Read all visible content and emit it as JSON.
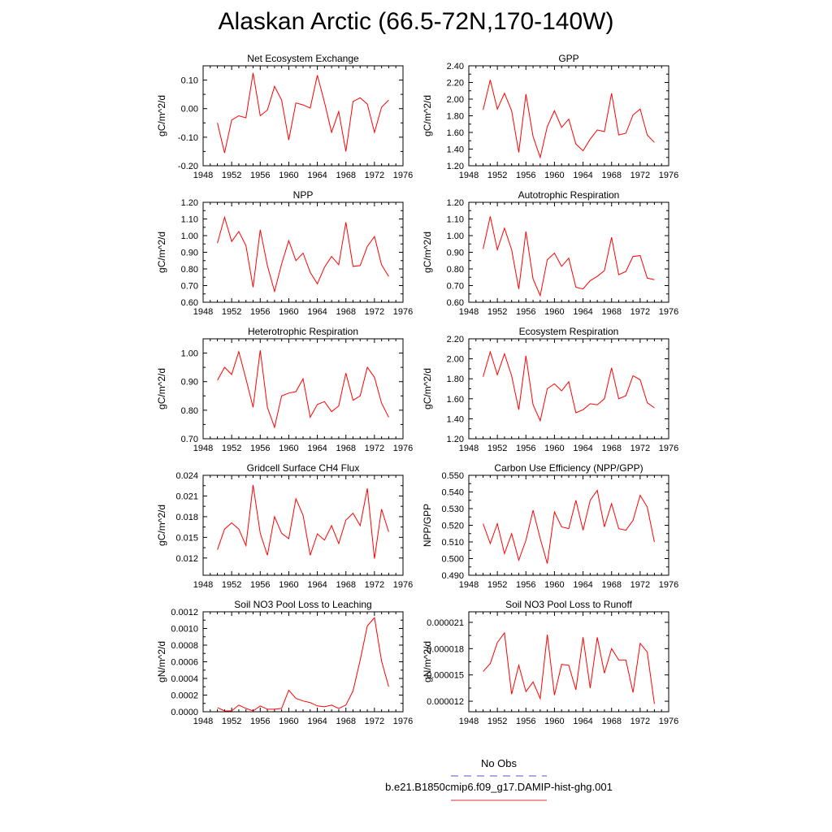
{
  "title": "Alaskan Arctic (66.5-72N,170-140W)",
  "legend": {
    "entries": [
      {
        "label": "No Obs",
        "color": "#5555cc",
        "style": "dashed"
      },
      {
        "label": "b.e21.B1850cmip6.f09_g17.DAMIP-hist-ghg.001",
        "color": "#e03030",
        "style": "solid"
      }
    ]
  },
  "series_color": "#ff0000",
  "chart_data": [
    {
      "type": "line",
      "title": "Net Ecosystem Exchange",
      "ylabel": "gC/m^2/d",
      "xlim": [
        1948,
        1976
      ],
      "ylim": [
        -0.2,
        0.15
      ],
      "xticks": [
        1948,
        1952,
        1956,
        1960,
        1964,
        1968,
        1972,
        1976
      ],
      "xticklabels": [
        "1948",
        "1952",
        "1956",
        "1960",
        "1964",
        "1968",
        "1972",
        "1976"
      ],
      "yticks": [
        -0.2,
        -0.1,
        0.0,
        0.1
      ],
      "yticklabels": [
        "-0.20",
        "-0.10",
        "0.00",
        "0.10"
      ],
      "x": [
        1950,
        1951,
        1952,
        1953,
        1954,
        1955,
        1956,
        1957,
        1958,
        1959,
        1960,
        1961,
        1962,
        1963,
        1964,
        1965,
        1966,
        1967,
        1968,
        1969,
        1970,
        1971,
        1972,
        1973,
        1974
      ],
      "series": [
        {
          "values": [
            -0.05,
            -0.155,
            -0.04,
            -0.025,
            -0.032,
            0.125,
            -0.025,
            -0.005,
            0.078,
            0.03,
            -0.11,
            0.02,
            0.013,
            0.002,
            0.117,
            0.022,
            -0.083,
            -0.01,
            -0.15,
            0.025,
            0.038,
            0.016,
            -0.083,
            0.005,
            0.03
          ]
        }
      ]
    },
    {
      "type": "line",
      "title": "GPP",
      "ylabel": "gC/m^2/d",
      "xlim": [
        1948,
        1976
      ],
      "ylim": [
        1.2,
        2.4
      ],
      "xticks": [
        1948,
        1952,
        1956,
        1960,
        1964,
        1968,
        1972,
        1976
      ],
      "xticklabels": [
        "1948",
        "1952",
        "1956",
        "1960",
        "1964",
        "1968",
        "1972",
        "1976"
      ],
      "yticks": [
        1.2,
        1.4,
        1.6,
        1.8,
        2.0,
        2.2,
        2.4
      ],
      "yticklabels": [
        "1.20",
        "1.40",
        "1.60",
        "1.80",
        "2.00",
        "2.20",
        "2.40"
      ],
      "x": [
        1950,
        1951,
        1952,
        1953,
        1954,
        1955,
        1956,
        1957,
        1958,
        1959,
        1960,
        1961,
        1962,
        1963,
        1964,
        1965,
        1966,
        1967,
        1968,
        1969,
        1970,
        1971,
        1972,
        1973,
        1974
      ],
      "series": [
        {
          "values": [
            1.87,
            2.23,
            1.88,
            2.07,
            1.86,
            1.36,
            2.06,
            1.55,
            1.3,
            1.67,
            1.86,
            1.66,
            1.76,
            1.46,
            1.38,
            1.52,
            1.63,
            1.61,
            2.07,
            1.57,
            1.59,
            1.81,
            1.88,
            1.57,
            1.48
          ]
        }
      ]
    },
    {
      "type": "line",
      "title": "NPP",
      "ylabel": "gC/m^2/d",
      "xlim": [
        1948,
        1976
      ],
      "ylim": [
        0.6,
        1.2
      ],
      "xticks": [
        1948,
        1952,
        1956,
        1960,
        1964,
        1968,
        1972,
        1976
      ],
      "xticklabels": [
        "1948",
        "1952",
        "1956",
        "1960",
        "1964",
        "1968",
        "1972",
        "1976"
      ],
      "yticks": [
        0.6,
        0.7,
        0.8,
        0.9,
        1.0,
        1.1,
        1.2
      ],
      "yticklabels": [
        "0.60",
        "0.70",
        "0.80",
        "0.90",
        "1.00",
        "1.10",
        "1.20"
      ],
      "x": [
        1950,
        1951,
        1952,
        1953,
        1954,
        1955,
        1956,
        1957,
        1958,
        1959,
        1960,
        1961,
        1962,
        1963,
        1964,
        1965,
        1966,
        1967,
        1968,
        1969,
        1970,
        1971,
        1972,
        1973,
        1974
      ],
      "series": [
        {
          "values": [
            0.955,
            1.11,
            0.965,
            1.025,
            0.94,
            0.69,
            1.035,
            0.82,
            0.665,
            0.83,
            0.97,
            0.85,
            0.895,
            0.78,
            0.71,
            0.81,
            0.875,
            0.825,
            1.08,
            0.815,
            0.82,
            0.935,
            0.995,
            0.825,
            0.755
          ]
        }
      ]
    },
    {
      "type": "line",
      "title": "Autotrophic Respiration",
      "ylabel": "gC/m^2/d",
      "xlim": [
        1948,
        1976
      ],
      "ylim": [
        0.6,
        1.2
      ],
      "xticks": [
        1948,
        1952,
        1956,
        1960,
        1964,
        1968,
        1972,
        1976
      ],
      "xticklabels": [
        "1948",
        "1952",
        "1956",
        "1960",
        "1964",
        "1968",
        "1972",
        "1976"
      ],
      "yticks": [
        0.6,
        0.7,
        0.8,
        0.9,
        1.0,
        1.1,
        1.2
      ],
      "yticklabels": [
        "0.60",
        "0.70",
        "0.80",
        "0.90",
        "1.00",
        "1.10",
        "1.20"
      ],
      "x": [
        1950,
        1951,
        1952,
        1953,
        1954,
        1955,
        1956,
        1957,
        1958,
        1959,
        1960,
        1961,
        1962,
        1963,
        1964,
        1965,
        1966,
        1967,
        1968,
        1969,
        1970,
        1971,
        1972,
        1973,
        1974
      ],
      "series": [
        {
          "values": [
            0.92,
            1.115,
            0.915,
            1.045,
            0.915,
            0.68,
            1.025,
            0.74,
            0.64,
            0.855,
            0.895,
            0.815,
            0.865,
            0.69,
            0.68,
            0.73,
            0.755,
            0.79,
            0.99,
            0.765,
            0.785,
            0.875,
            0.88,
            0.745,
            0.735
          ]
        }
      ]
    },
    {
      "type": "line",
      "title": "Heterotrophic Respiration",
      "ylabel": "gC/m^2/d",
      "xlim": [
        1948,
        1976
      ],
      "ylim": [
        0.7,
        1.05
      ],
      "xticks": [
        1948,
        1952,
        1956,
        1960,
        1964,
        1968,
        1972,
        1976
      ],
      "xticklabels": [
        "1948",
        "1952",
        "1956",
        "1960",
        "1964",
        "1968",
        "1972",
        "1976"
      ],
      "yticks": [
        0.7,
        0.8,
        0.9,
        1.0
      ],
      "yticklabels": [
        "0.70",
        "0.80",
        "0.90",
        "1.00"
      ],
      "x": [
        1950,
        1951,
        1952,
        1953,
        1954,
        1955,
        1956,
        1957,
        1958,
        1959,
        1960,
        1961,
        1962,
        1963,
        1964,
        1965,
        1966,
        1967,
        1968,
        1969,
        1970,
        1971,
        1972,
        1973,
        1974
      ],
      "series": [
        {
          "values": [
            0.905,
            0.95,
            0.925,
            1.005,
            0.91,
            0.81,
            1.01,
            0.81,
            0.74,
            0.85,
            0.86,
            0.865,
            0.91,
            0.775,
            0.82,
            0.83,
            0.795,
            0.815,
            0.93,
            0.835,
            0.85,
            0.95,
            0.915,
            0.825,
            0.775
          ]
        }
      ]
    },
    {
      "type": "line",
      "title": "Ecosystem Respiration",
      "ylabel": "gC/m^2/d",
      "xlim": [
        1948,
        1976
      ],
      "ylim": [
        1.2,
        2.2
      ],
      "xticks": [
        1948,
        1952,
        1956,
        1960,
        1964,
        1968,
        1972,
        1976
      ],
      "xticklabels": [
        "1948",
        "1952",
        "1956",
        "1960",
        "1964",
        "1968",
        "1972",
        "1976"
      ],
      "yticks": [
        1.2,
        1.4,
        1.6,
        1.8,
        2.0,
        2.2
      ],
      "yticklabels": [
        "1.20",
        "1.40",
        "1.60",
        "1.80",
        "2.00",
        "2.20"
      ],
      "x": [
        1950,
        1951,
        1952,
        1953,
        1954,
        1955,
        1956,
        1957,
        1958,
        1959,
        1960,
        1961,
        1962,
        1963,
        1964,
        1965,
        1966,
        1967,
        1968,
        1969,
        1970,
        1971,
        1972,
        1973,
        1974
      ],
      "series": [
        {
          "values": [
            1.82,
            2.07,
            1.84,
            2.05,
            1.83,
            1.49,
            2.03,
            1.54,
            1.38,
            1.7,
            1.75,
            1.68,
            1.77,
            1.46,
            1.49,
            1.55,
            1.54,
            1.6,
            1.91,
            1.6,
            1.63,
            1.83,
            1.79,
            1.56,
            1.51
          ]
        }
      ]
    },
    {
      "type": "line",
      "title": "Gridcell Surface CH4 Flux",
      "ylabel": "gC/m^2/d",
      "xlim": [
        1948,
        1976
      ],
      "ylim": [
        0.0095,
        0.024
      ],
      "xticks": [
        1948,
        1952,
        1956,
        1960,
        1964,
        1968,
        1972,
        1976
      ],
      "xticklabels": [
        "1948",
        "1952",
        "1956",
        "1960",
        "1964",
        "1968",
        "1972",
        "1976"
      ],
      "yticks": [
        0.012,
        0.015,
        0.018,
        0.021,
        0.024
      ],
      "yticklabels": [
        "0.012",
        "0.015",
        "0.018",
        "0.021",
        "0.024"
      ],
      "x": [
        1950,
        1951,
        1952,
        1953,
        1954,
        1955,
        1956,
        1957,
        1958,
        1959,
        1960,
        1961,
        1962,
        1963,
        1964,
        1965,
        1966,
        1967,
        1968,
        1969,
        1970,
        1971,
        1972,
        1973,
        1974
      ],
      "series": [
        {
          "values": [
            0.0132,
            0.0162,
            0.0171,
            0.0162,
            0.0138,
            0.0226,
            0.0156,
            0.0124,
            0.018,
            0.0156,
            0.0148,
            0.0206,
            0.0182,
            0.0124,
            0.0155,
            0.0146,
            0.0167,
            0.0141,
            0.0175,
            0.0185,
            0.0167,
            0.0221,
            0.0119,
            0.0191,
            0.0158
          ]
        }
      ]
    },
    {
      "type": "line",
      "title": "Carbon Use Efficiency (NPP/GPP)",
      "ylabel": "NPP/GPP",
      "xlim": [
        1948,
        1976
      ],
      "ylim": [
        0.49,
        0.55
      ],
      "xticks": [
        1948,
        1952,
        1956,
        1960,
        1964,
        1968,
        1972,
        1976
      ],
      "xticklabels": [
        "1948",
        "1952",
        "1956",
        "1960",
        "1964",
        "1968",
        "1972",
        "1976"
      ],
      "yticks": [
        0.49,
        0.5,
        0.51,
        0.52,
        0.53,
        0.54,
        0.55
      ],
      "yticklabels": [
        "0.490",
        "0.500",
        "0.510",
        "0.520",
        "0.530",
        "0.540",
        "0.550"
      ],
      "x": [
        1950,
        1951,
        1952,
        1953,
        1954,
        1955,
        1956,
        1957,
        1958,
        1959,
        1960,
        1961,
        1962,
        1963,
        1964,
        1965,
        1966,
        1967,
        1968,
        1969,
        1970,
        1971,
        1972,
        1973,
        1974
      ],
      "series": [
        {
          "values": [
            0.521,
            0.509,
            0.521,
            0.503,
            0.515,
            0.499,
            0.511,
            0.529,
            0.512,
            0.497,
            0.528,
            0.519,
            0.518,
            0.535,
            0.517,
            0.535,
            0.541,
            0.519,
            0.533,
            0.518,
            0.517,
            0.523,
            0.538,
            0.531,
            0.51
          ]
        }
      ]
    },
    {
      "type": "line",
      "title": "Soil NO3 Pool Loss to Leaching",
      "ylabel": "gN/m^2/d",
      "xlim": [
        1948,
        1976
      ],
      "ylim": [
        0.0,
        0.0012
      ],
      "xticks": [
        1948,
        1952,
        1956,
        1960,
        1964,
        1968,
        1972,
        1976
      ],
      "xticklabels": [
        "1948",
        "1952",
        "1956",
        "1960",
        "1964",
        "1968",
        "1972",
        "1976"
      ],
      "yticks": [
        0.0,
        0.0002,
        0.0004,
        0.0006,
        0.0008,
        0.001,
        0.0012
      ],
      "yticklabels": [
        "0.0000",
        "0.0002",
        "0.0004",
        "0.0006",
        "0.0008",
        "0.0010",
        "0.0012"
      ],
      "x": [
        1950,
        1951,
        1952,
        1953,
        1954,
        1955,
        1956,
        1957,
        1958,
        1959,
        1960,
        1961,
        1962,
        1963,
        1964,
        1965,
        1966,
        1967,
        1968,
        1969,
        1970,
        1971,
        1972,
        1973,
        1974
      ],
      "series": [
        {
          "values": [
            5e-05,
            1e-05,
            1e-05,
            8e-05,
            4e-05,
            1e-05,
            7e-05,
            3e-05,
            3e-05,
            4e-05,
            0.00026,
            0.00016,
            0.00013,
            0.00011,
            7e-05,
            6e-05,
            8e-05,
            4e-05,
            8e-05,
            0.00025,
            0.00062,
            0.00103,
            0.00113,
            0.00061,
            0.0003
          ]
        }
      ]
    },
    {
      "type": "line",
      "title": "Soil NO3 Pool Loss to Runoff",
      "ylabel": "gN/m^2/d",
      "xlim": [
        1948,
        1976
      ],
      "ylim": [
        1.08e-05,
        2.22e-05
      ],
      "xticks": [
        1948,
        1952,
        1956,
        1960,
        1964,
        1968,
        1972,
        1976
      ],
      "xticklabels": [
        "1948",
        "1952",
        "1956",
        "1960",
        "1964",
        "1968",
        "1972",
        "1976"
      ],
      "yticks": [
        1.2e-05,
        1.5e-05,
        1.8e-05,
        2.1e-05
      ],
      "yticklabels": [
        "0.000012",
        "0.000015",
        "0.000018",
        "0.000021"
      ],
      "x": [
        1950,
        1951,
        1952,
        1953,
        1954,
        1955,
        1956,
        1957,
        1958,
        1959,
        1960,
        1961,
        1962,
        1963,
        1964,
        1965,
        1966,
        1967,
        1968,
        1969,
        1970,
        1971,
        1972,
        1973,
        1974
      ],
      "series": [
        {
          "values": [
            1.54e-05,
            1.63e-05,
            1.87e-05,
            1.98e-05,
            1.28e-05,
            1.61e-05,
            1.31e-05,
            1.42e-05,
            1.23e-05,
            1.96e-05,
            1.27e-05,
            1.62e-05,
            1.61e-05,
            1.33e-05,
            1.93e-05,
            1.35e-05,
            1.93e-05,
            1.52e-05,
            1.8e-05,
            1.67e-05,
            1.67e-05,
            1.3e-05,
            1.86e-05,
            1.76e-05,
            1.17e-05
          ]
        }
      ]
    }
  ]
}
